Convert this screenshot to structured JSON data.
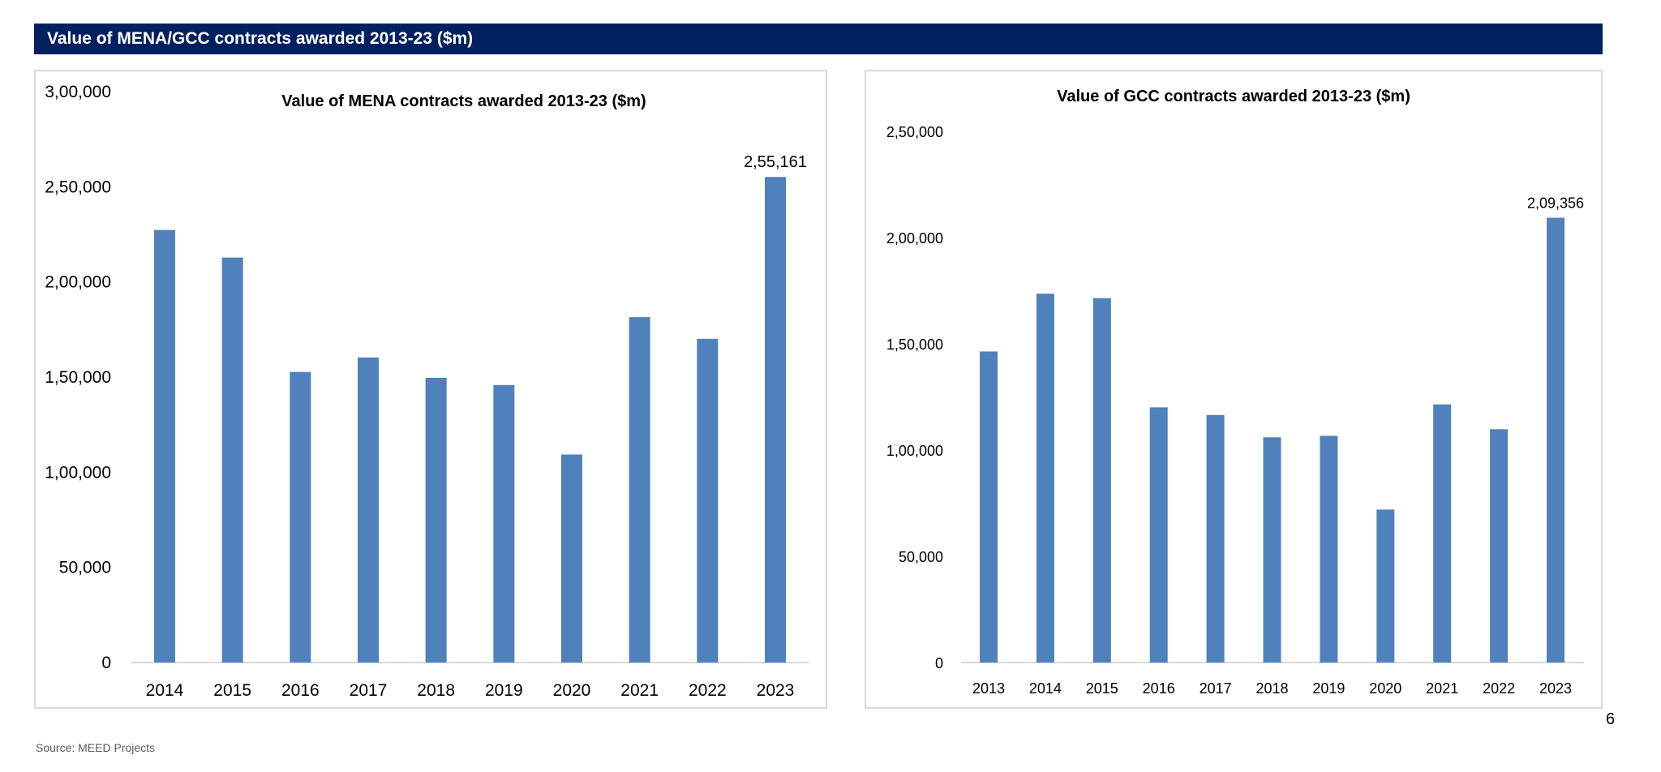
{
  "header": {
    "title": "Value of MENA/GCC contracts awarded 2013-23 ($m)"
  },
  "footer": {
    "source": "Source: MEED Projects",
    "page_number": "6"
  },
  "colors": {
    "banner": "#002060",
    "bar": "#4F81BD"
  },
  "chart_data": [
    {
      "type": "bar",
      "title": "Value of MENA contracts awarded 2013-23 ($m)",
      "xlabel": "",
      "ylabel": "",
      "categories": [
        "2014",
        "2015",
        "2016",
        "2017",
        "2018",
        "2019",
        "2020",
        "2021",
        "2022",
        "2023"
      ],
      "values": [
        227300,
        212800,
        152700,
        160300,
        149600,
        145800,
        109300,
        181500,
        170100,
        255161
      ],
      "data_labels": {
        "2023": "2,55,161"
      },
      "ylim": [
        0,
        300000
      ],
      "yticks": [
        "0",
        "50,000",
        "1,00,000",
        "1,50,000",
        "2,00,000",
        "2,50,000",
        "3,00,000"
      ],
      "grid": false,
      "legend": "none"
    },
    {
      "type": "bar",
      "title": "Value of GCC contracts awarded 2013-23 ($m)",
      "xlabel": "",
      "ylabel": "",
      "categories": [
        "2013",
        "2014",
        "2015",
        "2016",
        "2017",
        "2018",
        "2019",
        "2020",
        "2021",
        "2022",
        "2023"
      ],
      "values": [
        146400,
        173600,
        171500,
        120100,
        116500,
        106000,
        106700,
        72000,
        121500,
        109800,
        209356
      ],
      "data_labels": {
        "2023": "2,09,356"
      },
      "ylim": [
        0,
        250000
      ],
      "yticks": [
        "0",
        "50,000",
        "1,00,000",
        "1,50,000",
        "2,00,000",
        "2,50,000"
      ],
      "grid": false,
      "legend": "none"
    }
  ]
}
